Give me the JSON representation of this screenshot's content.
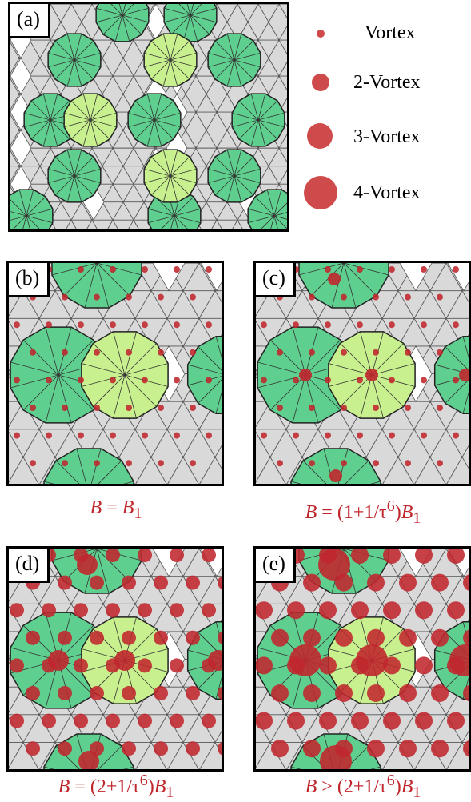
{
  "panels": [
    {
      "label": "(a)",
      "vortex_size": "none"
    },
    {
      "label": "(b)",
      "vortex_size": "small"
    },
    {
      "label": "(c)",
      "vortex_size": "small-plus-2"
    },
    {
      "label": "(d)",
      "vortex_size": "medium"
    },
    {
      "label": "(e)",
      "vortex_size": "large"
    }
  ],
  "legend": [
    {
      "label": "Vortex",
      "size": "1"
    },
    {
      "label": "2-Vortex",
      "size": "2"
    },
    {
      "label": "3-Vortex",
      "size": "3"
    },
    {
      "label": "4-Vortex",
      "size": "4"
    }
  ],
  "captions": {
    "b": {
      "lhs": "B",
      "rhs": "B",
      "sub": "1",
      "pre": ""
    },
    "c": {
      "lhs": "B",
      "mid": "(1+1/τ",
      "sup": "6",
      "post": ")",
      "rhs": "B",
      "sub": "1"
    },
    "d": {
      "lhs": "B",
      "mid": "(2+1/τ",
      "sup": "6",
      "post": ")",
      "rhs": "B",
      "sub": "1"
    },
    "e": {
      "lhs": "B",
      "mid": "(2+1/τ",
      "sup": "6",
      "post": ")",
      "rhs": "B",
      "sub": "1"
    }
  },
  "colors": {
    "tile_gray": "#d9d9d9",
    "dodecagon_green": "#5fcf8f",
    "dodecagon_lightgreen": "#c9f08f",
    "vortex_red": "#c0272d",
    "legend_red": "#cf4b4b",
    "caption_red": "#c0272d"
  }
}
